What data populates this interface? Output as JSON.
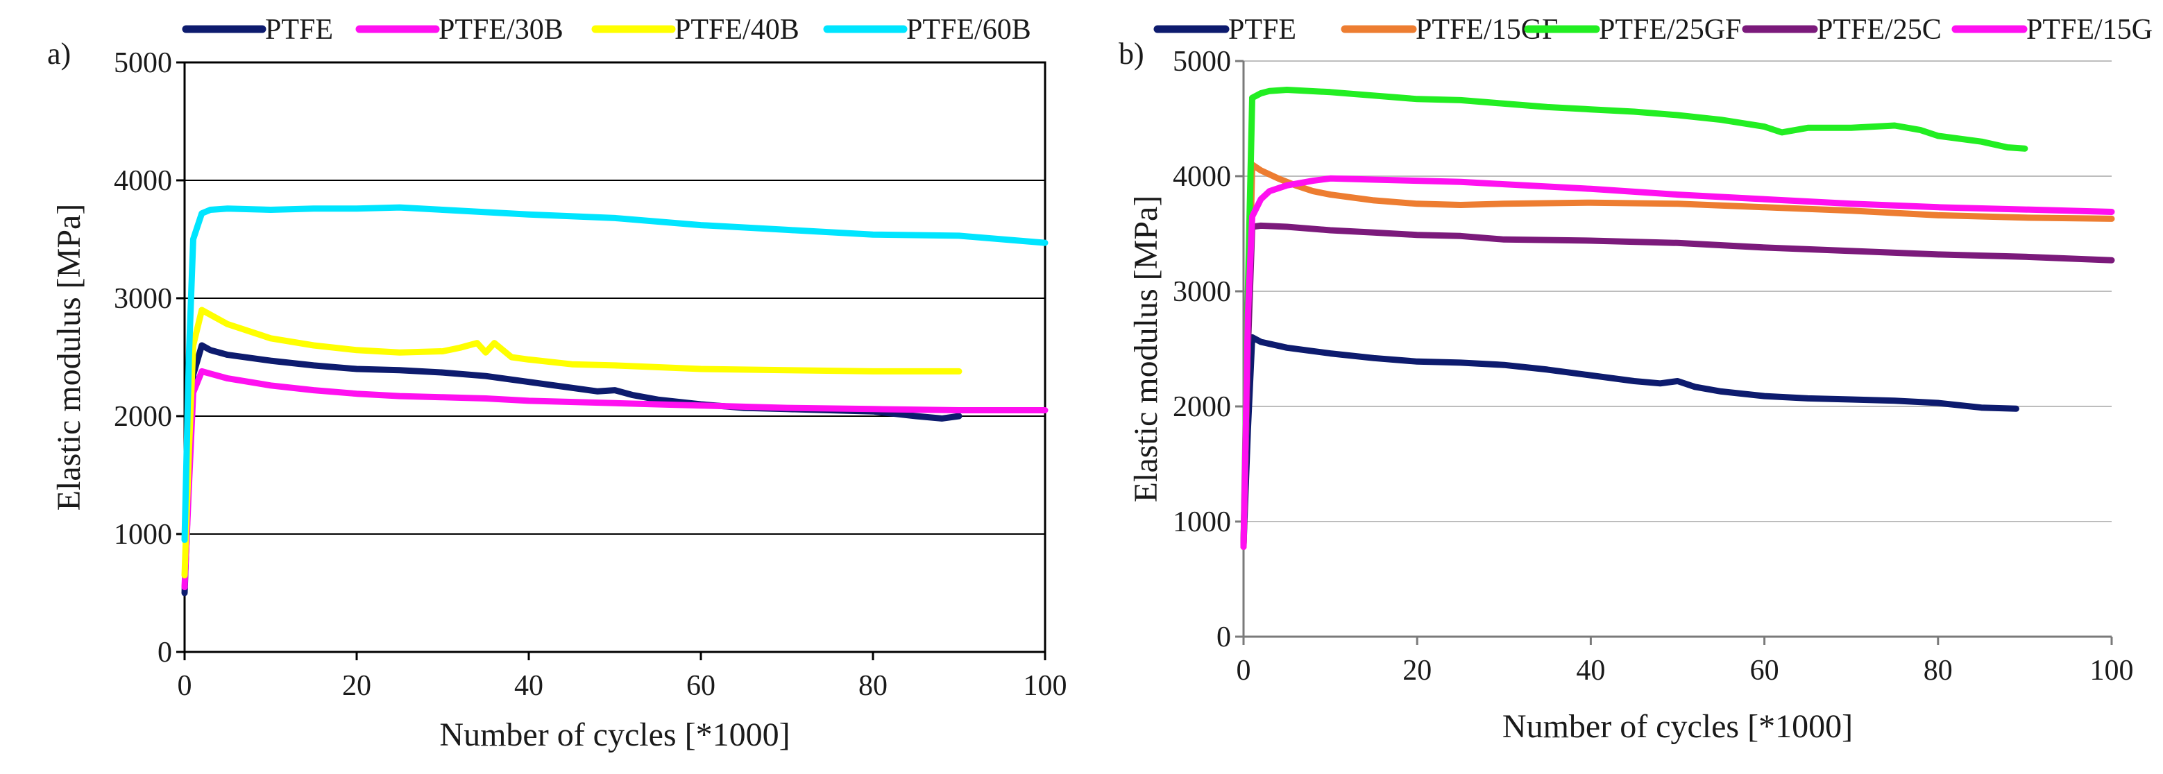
{
  "chart_data": [
    {
      "type": "line",
      "panel_label": "a)",
      "xlabel": "Number of cycles [*1000]",
      "ylabel": "Elastic modulus [MPa]",
      "xlim": [
        0,
        100
      ],
      "ylim": [
        0,
        5000
      ],
      "xticks": [
        0,
        20,
        40,
        60,
        80,
        100
      ],
      "yticks": [
        0,
        1000,
        2000,
        3000,
        4000,
        5000
      ],
      "grid": "horizontal",
      "legend_position": "top",
      "series": [
        {
          "name": "PTFE",
          "color": "#0d1b6e",
          "x": [
            0,
            0.5,
            1,
            2,
            3,
            5,
            10,
            15,
            20,
            25,
            30,
            35,
            40,
            45,
            48,
            50,
            52,
            55,
            60,
            65,
            70,
            75,
            80,
            85,
            88,
            90
          ],
          "y": [
            500,
            1500,
            2350,
            2600,
            2560,
            2520,
            2470,
            2430,
            2400,
            2390,
            2370,
            2340,
            2290,
            2240,
            2210,
            2220,
            2180,
            2140,
            2100,
            2070,
            2060,
            2050,
            2040,
            2000,
            1980,
            2000
          ]
        },
        {
          "name": "PTFE/30B",
          "color": "#ff10f0",
          "x": [
            0,
            0.5,
            1,
            2,
            3,
            5,
            10,
            15,
            20,
            25,
            30,
            35,
            40,
            50,
            60,
            70,
            80,
            90,
            100
          ],
          "y": [
            550,
            1400,
            2200,
            2380,
            2360,
            2320,
            2260,
            2220,
            2190,
            2170,
            2160,
            2150,
            2130,
            2110,
            2090,
            2070,
            2060,
            2050,
            2050
          ]
        },
        {
          "name": "PTFE/40B",
          "color": "#ffff00",
          "x": [
            0,
            0.5,
            1,
            2,
            3,
            5,
            10,
            15,
            20,
            25,
            30,
            32,
            34,
            35,
            36,
            37,
            38,
            40,
            45,
            50,
            60,
            70,
            80,
            90
          ],
          "y": [
            650,
            1700,
            2600,
            2900,
            2860,
            2780,
            2660,
            2600,
            2560,
            2540,
            2550,
            2580,
            2620,
            2540,
            2620,
            2560,
            2500,
            2480,
            2440,
            2430,
            2400,
            2390,
            2380,
            2380
          ]
        },
        {
          "name": "PTFE/60B",
          "color": "#00e5ff",
          "x": [
            0,
            0.5,
            1,
            2,
            3,
            5,
            10,
            15,
            20,
            25,
            30,
            40,
            50,
            60,
            70,
            80,
            90,
            100
          ],
          "y": [
            950,
            2500,
            3500,
            3720,
            3750,
            3760,
            3750,
            3760,
            3760,
            3770,
            3750,
            3710,
            3680,
            3620,
            3580,
            3540,
            3530,
            3470
          ]
        }
      ]
    },
    {
      "type": "line",
      "panel_label": "b)",
      "xlabel": "Number of cycles [*1000]",
      "ylabel": "Elastic modulus [MPa]",
      "xlim": [
        0,
        100
      ],
      "ylim": [
        0,
        5000
      ],
      "xticks": [
        0,
        20,
        40,
        60,
        80,
        100
      ],
      "yticks": [
        0,
        1000,
        2000,
        3000,
        4000,
        5000
      ],
      "grid": "horizontal",
      "legend_position": "top",
      "series": [
        {
          "name": "PTFE",
          "color": "#0d1b6e",
          "x": [
            0,
            0.5,
            1,
            2,
            5,
            10,
            15,
            20,
            25,
            30,
            35,
            40,
            45,
            48,
            50,
            52,
            55,
            60,
            65,
            70,
            75,
            80,
            85,
            89
          ],
          "y": [
            800,
            1800,
            2600,
            2560,
            2510,
            2460,
            2420,
            2390,
            2380,
            2360,
            2320,
            2270,
            2220,
            2200,
            2220,
            2170,
            2130,
            2090,
            2070,
            2060,
            2050,
            2030,
            1990,
            1980
          ]
        },
        {
          "name": "PTFE/15GF",
          "color": "#ed7d31",
          "x": [
            0,
            0.5,
            1,
            2,
            4,
            6,
            8,
            10,
            12,
            15,
            20,
            25,
            30,
            40,
            50,
            60,
            70,
            80,
            90,
            100
          ],
          "y": [
            780,
            2500,
            4100,
            4050,
            3980,
            3920,
            3870,
            3840,
            3820,
            3790,
            3760,
            3750,
            3760,
            3770,
            3760,
            3730,
            3700,
            3660,
            3640,
            3630
          ]
        },
        {
          "name": "PTFE/25GF",
          "color": "#22ee22",
          "x": [
            0,
            0.5,
            1,
            2,
            3,
            5,
            10,
            15,
            20,
            25,
            30,
            35,
            40,
            45,
            50,
            55,
            60,
            62,
            65,
            70,
            75,
            78,
            80,
            85,
            88,
            90
          ],
          "y": [
            800,
            3000,
            4680,
            4720,
            4740,
            4750,
            4730,
            4700,
            4670,
            4660,
            4630,
            4600,
            4580,
            4560,
            4530,
            4490,
            4430,
            4380,
            4420,
            4420,
            4440,
            4400,
            4350,
            4300,
            4250,
            4240
          ]
        },
        {
          "name": "PTFE/25C",
          "color": "#7b1a7b",
          "x": [
            0,
            0.5,
            1,
            2,
            5,
            10,
            15,
            20,
            25,
            30,
            40,
            50,
            60,
            70,
            80,
            90,
            100
          ],
          "y": [
            800,
            2500,
            3560,
            3570,
            3560,
            3530,
            3510,
            3490,
            3480,
            3450,
            3440,
            3420,
            3380,
            3350,
            3320,
            3300,
            3270
          ]
        },
        {
          "name": "PTFE/15G",
          "color": "#ff10f0",
          "x": [
            0,
            0.5,
            1,
            2,
            3,
            5,
            8,
            10,
            15,
            20,
            25,
            30,
            40,
            50,
            60,
            70,
            80,
            90,
            100
          ],
          "y": [
            780,
            2800,
            3650,
            3800,
            3870,
            3920,
            3960,
            3980,
            3970,
            3960,
            3950,
            3930,
            3890,
            3840,
            3800,
            3760,
            3730,
            3710,
            3690
          ]
        }
      ]
    }
  ]
}
